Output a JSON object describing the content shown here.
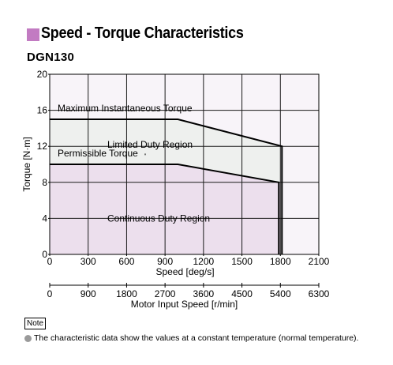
{
  "heading": {
    "title": "Speed - Torque Characteristics",
    "marker_color": "#c27bc2"
  },
  "model": "DGN130",
  "note": {
    "label": "Note",
    "text": "The characteristic data show the values at a constant temperature (normal temperature)."
  },
  "colors": {
    "continuous_fill": "#ecdfed",
    "limited_fill": "#eef0ee",
    "plot_background": "#f8f4f9",
    "grid": "#1a1a1a"
  },
  "chart_data": {
    "type": "area",
    "xlabel": "Speed [deg/s]",
    "ylabel": "Torque [N·m]",
    "xlim": [
      0,
      2100
    ],
    "ylim": [
      0,
      20
    ],
    "x_ticks": [
      "0",
      "300",
      "600",
      "900",
      "1200",
      "1500",
      "1800",
      "2100"
    ],
    "y_ticks": [
      "0",
      "4",
      "8",
      "12",
      "16",
      "20"
    ],
    "secondary_xlabel": "Motor Input Speed [r/min]",
    "secondary_x_ticks": [
      "0",
      "900",
      "1800",
      "2700",
      "3600",
      "4500",
      "5400",
      "6300"
    ],
    "grid": true,
    "series": [
      {
        "name": "Maximum Instantaneous Torque",
        "x": [
          0,
          1000,
          1800,
          1800
        ],
        "y": [
          15,
          15,
          12,
          0
        ]
      },
      {
        "name": "Permissible Torque",
        "x": [
          0,
          1000,
          1800,
          1800
        ],
        "y": [
          10,
          10,
          8,
          0
        ]
      }
    ],
    "regions": [
      "Limited Duty Region",
      "Continuous Duty Region"
    ]
  }
}
